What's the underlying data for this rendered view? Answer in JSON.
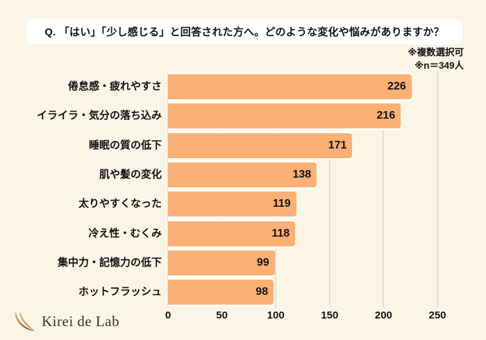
{
  "background_color": "#FBF5E6",
  "title": {
    "text": "Q. 「はい」「少し感じる」と回答された方へ。どのような変化や悩みがありますか？"
  },
  "notes": [
    "※複数選択可",
    "※n＝349人"
  ],
  "chart_data": {
    "type": "bar",
    "orientation": "horizontal",
    "title": "Q. 「はい」「少し感じる」と回答された方へ。どのような変化や悩みがありますか？",
    "categories": [
      "倦怠感・疲れやすさ",
      "イライラ・気分の落ち込み",
      "睡眠の質の低下",
      "肌や髪の変化",
      "太りやすくなった",
      "冷え性・むくみ",
      "集中力・記憶力の低下",
      "ホットフラッシュ"
    ],
    "values": [
      226,
      216,
      171,
      138,
      119,
      118,
      99,
      98
    ],
    "value_labels": [
      "226",
      "216",
      "171",
      "138",
      "119",
      "118",
      "99",
      "98"
    ],
    "xlabel": "",
    "ylabel": "",
    "xlim": [
      0,
      250
    ],
    "x_ticks": [
      0,
      50,
      100,
      150,
      200,
      250
    ],
    "grid": true,
    "legend": false,
    "bar_color": "#FBB175",
    "bar_separator_color": "#FFFDF4",
    "grid_color": "#E5E0D3",
    "text_color": "#111111"
  },
  "logo": {
    "text": "Kirei de Lab",
    "icon": "feather-icon",
    "icon_color_dark": "#74501F",
    "icon_color_light": "#D8B98A"
  }
}
